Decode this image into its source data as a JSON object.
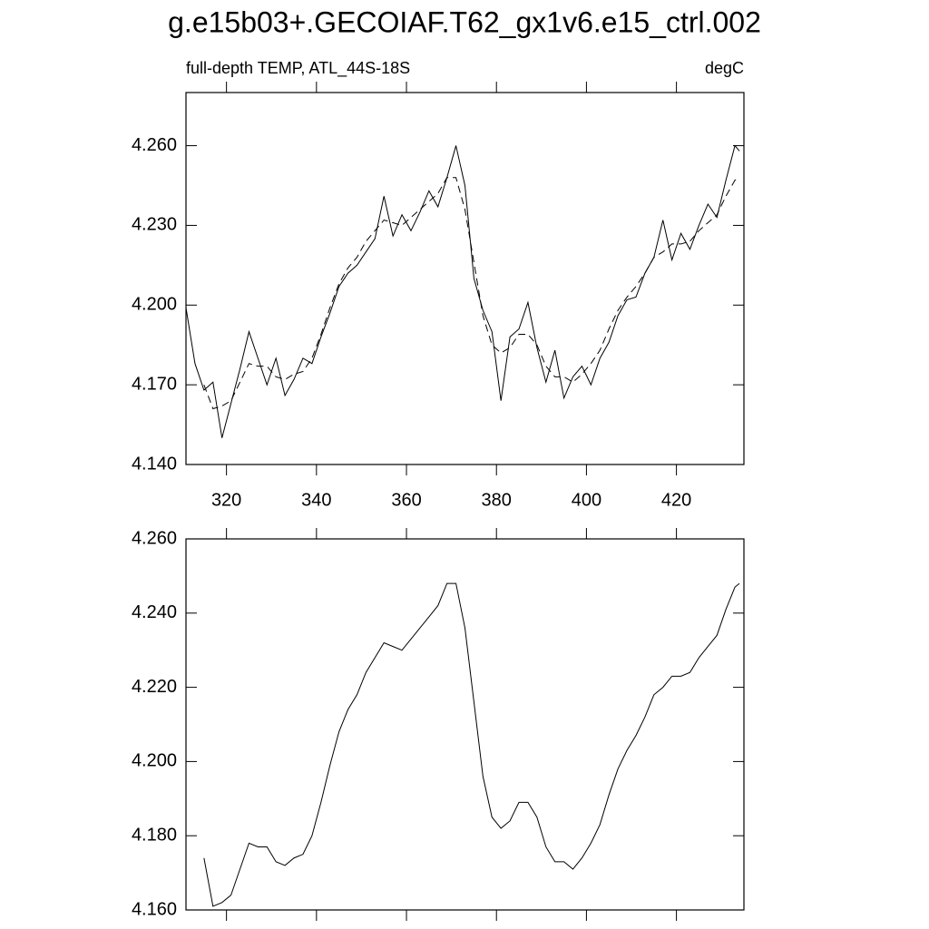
{
  "chart_data": [
    {
      "type": "line",
      "title": "g.e15b03+.GECOIAF.T62_gx1v6.e15_ctrl.002",
      "subtitle_left": "full-depth TEMP, ATL_44S-18S",
      "subtitle_right": "degC",
      "x": [
        311,
        313,
        315,
        317,
        319,
        321,
        323,
        325,
        327,
        329,
        331,
        333,
        335,
        337,
        339,
        341,
        343,
        345,
        347,
        349,
        351,
        353,
        355,
        357,
        359,
        361,
        363,
        365,
        367,
        369,
        371,
        373,
        375,
        377,
        379,
        381,
        383,
        385,
        387,
        389,
        391,
        393,
        395,
        397,
        399,
        401,
        403,
        405,
        407,
        409,
        411,
        413,
        415,
        417,
        419,
        421,
        423,
        425,
        427,
        429,
        431,
        433,
        434
      ],
      "series": [
        {
          "color": "#000000",
          "linestyle": "solid",
          "values": [
            4.199,
            4.178,
            4.168,
            4.171,
            4.15,
            4.163,
            4.176,
            4.19,
            4.18,
            4.17,
            4.18,
            4.166,
            4.172,
            4.18,
            4.178,
            4.188,
            4.197,
            4.207,
            4.212,
            4.215,
            4.22,
            4.225,
            4.241,
            4.226,
            4.234,
            4.228,
            4.235,
            4.243,
            4.237,
            4.248,
            4.26,
            4.245,
            4.21,
            4.198,
            4.19,
            4.164,
            4.188,
            4.191,
            4.201,
            4.184,
            4.171,
            4.183,
            4.165,
            4.173,
            4.177,
            4.17,
            4.18,
            4.186,
            4.196,
            4.202,
            4.203,
            4.212,
            4.218,
            4.232,
            4.217,
            4.227,
            4.221,
            4.23,
            4.238,
            4.233,
            4.247,
            4.26,
            4.258
          ]
        },
        {
          "color": "#000000",
          "linestyle": "dashed",
          "values": [
            null,
            null,
            4.17,
            4.161,
            4.162,
            4.164,
            4.171,
            4.178,
            4.177,
            4.177,
            4.173,
            4.172,
            4.174,
            4.175,
            4.18,
            4.189,
            4.199,
            4.208,
            4.214,
            4.218,
            4.224,
            4.228,
            4.232,
            4.231,
            4.23,
            4.233,
            4.236,
            4.239,
            4.242,
            4.248,
            4.248,
            4.236,
            4.216,
            4.196,
            4.185,
            4.182,
            4.184,
            4.189,
            4.189,
            4.185,
            4.177,
            4.173,
            4.173,
            4.171,
            4.174,
            4.178,
            4.183,
            4.191,
            4.198,
            4.203,
            4.207,
            4.212,
            4.218,
            4.22,
            4.223,
            4.223,
            4.224,
            4.228,
            4.231,
            4.234,
            4.241,
            4.247,
            4.248
          ]
        }
      ],
      "xlim": [
        311,
        435
      ],
      "xticks": [
        320,
        340,
        360,
        380,
        400,
        420
      ],
      "ylim": [
        4.14,
        4.28
      ],
      "yticks": [
        {
          "value": 4.14,
          "label": "4.140"
        },
        {
          "value": 4.17,
          "label": "4.170"
        },
        {
          "value": 4.2,
          "label": "4.200"
        },
        {
          "value": 4.23,
          "label": "4.230"
        },
        {
          "value": 4.26,
          "label": "4.260"
        }
      ]
    },
    {
      "type": "line",
      "x": [
        315,
        317,
        319,
        321,
        323,
        325,
        327,
        329,
        331,
        333,
        335,
        337,
        339,
        341,
        343,
        345,
        347,
        349,
        351,
        353,
        355,
        357,
        359,
        361,
        363,
        365,
        367,
        369,
        371,
        373,
        375,
        377,
        379,
        381,
        383,
        385,
        387,
        389,
        391,
        393,
        395,
        397,
        399,
        401,
        403,
        405,
        407,
        409,
        411,
        413,
        415,
        417,
        419,
        421,
        423,
        425,
        427,
        429,
        431,
        433,
        434
      ],
      "series": [
        {
          "color": "#000000",
          "linestyle": "solid",
          "values": [
            4.174,
            4.161,
            4.162,
            4.164,
            4.171,
            4.178,
            4.177,
            4.177,
            4.173,
            4.172,
            4.174,
            4.175,
            4.18,
            4.189,
            4.199,
            4.208,
            4.214,
            4.218,
            4.224,
            4.228,
            4.232,
            4.231,
            4.23,
            4.233,
            4.236,
            4.239,
            4.242,
            4.248,
            4.248,
            4.236,
            4.216,
            4.196,
            4.185,
            4.182,
            4.184,
            4.189,
            4.189,
            4.185,
            4.177,
            4.173,
            4.173,
            4.171,
            4.174,
            4.178,
            4.183,
            4.191,
            4.198,
            4.203,
            4.207,
            4.212,
            4.218,
            4.22,
            4.223,
            4.223,
            4.224,
            4.228,
            4.231,
            4.234,
            4.241,
            4.247,
            4.248
          ]
        }
      ],
      "xlim": [
        311,
        435
      ],
      "xticks": [
        320,
        340,
        360,
        380,
        400,
        420
      ],
      "ylim": [
        4.16,
        4.26
      ],
      "yticks": [
        {
          "value": 4.16,
          "label": "4.160"
        },
        {
          "value": 4.18,
          "label": "4.180"
        },
        {
          "value": 4.2,
          "label": "4.200"
        },
        {
          "value": 4.22,
          "label": "4.220"
        },
        {
          "value": 4.24,
          "label": "4.240"
        },
        {
          "value": 4.26,
          "label": "4.260"
        }
      ]
    }
  ]
}
